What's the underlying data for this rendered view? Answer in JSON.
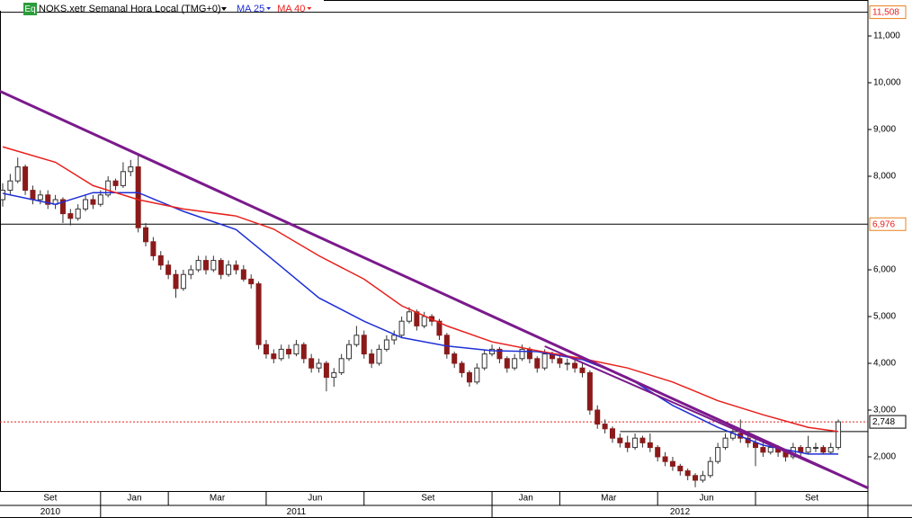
{
  "chart_data": {
    "type": "candlestick",
    "title": "NOKS.xetr Semanal Hora Local (TMG+0)",
    "badge": "Eq",
    "ylim": [
      1269,
      11769
    ],
    "yticks": [
      {
        "value": 2000,
        "label": "2,000"
      },
      {
        "value": 3000,
        "label": "3,000"
      },
      {
        "value": 4000,
        "label": "4,000"
      },
      {
        "value": 5000,
        "label": "5,000"
      },
      {
        "value": 6000,
        "label": "6,000"
      },
      {
        "value": 8000,
        "label": "8,000"
      },
      {
        "value": 9000,
        "label": "9,000"
      },
      {
        "value": 10000,
        "label": "10,000"
      },
      {
        "value": 11000,
        "label": "11,000"
      }
    ],
    "up_color": "#ffffff",
    "down_color": "#8b1a1a",
    "ohlc": [
      [
        7500,
        7850,
        7350,
        7700
      ],
      [
        7700,
        8050,
        7600,
        7900
      ],
      [
        7900,
        8400,
        7850,
        8200
      ],
      [
        8200,
        8250,
        7600,
        7700
      ],
      [
        7700,
        7800,
        7400,
        7500
      ],
      [
        7500,
        7700,
        7400,
        7600
      ],
      [
        7600,
        7700,
        7300,
        7400
      ],
      [
        7400,
        7600,
        7300,
        7500
      ],
      [
        7500,
        7550,
        7000,
        7200
      ],
      [
        7200,
        7300,
        6950,
        7100
      ],
      [
        7100,
        7400,
        7050,
        7300
      ],
      [
        7300,
        7600,
        7250,
        7500
      ],
      [
        7500,
        7600,
        7300,
        7400
      ],
      [
        7400,
        7700,
        7350,
        7600
      ],
      [
        7600,
        8000,
        7550,
        7900
      ],
      [
        7900,
        7950,
        7700,
        7800
      ],
      [
        7800,
        8300,
        7750,
        8100
      ],
      [
        8100,
        8350,
        8000,
        8200
      ],
      [
        8200,
        8450,
        6800,
        6900
      ],
      [
        6900,
        7000,
        6500,
        6600
      ],
      [
        6600,
        6700,
        6200,
        6300
      ],
      [
        6300,
        6400,
        6000,
        6100
      ],
      [
        6100,
        6200,
        5800,
        5900
      ],
      [
        5900,
        6000,
        5400,
        5600
      ],
      [
        5600,
        6000,
        5550,
        5900
      ],
      [
        5900,
        6100,
        5800,
        6000
      ],
      [
        6000,
        6300,
        5950,
        6200
      ],
      [
        6200,
        6300,
        5900,
        6000
      ],
      [
        6000,
        6300,
        5950,
        6200
      ],
      [
        6200,
        6250,
        5800,
        5900
      ],
      [
        5900,
        6200,
        5850,
        6100
      ],
      [
        6100,
        6200,
        5900,
        6000
      ],
      [
        6000,
        6100,
        5750,
        5800
      ],
      [
        5800,
        5900,
        5600,
        5700
      ],
      [
        5700,
        5750,
        4300,
        4400
      ],
      [
        4400,
        4500,
        4100,
        4200
      ],
      [
        4200,
        4300,
        4000,
        4100
      ],
      [
        4100,
        4400,
        4050,
        4300
      ],
      [
        4300,
        4400,
        4100,
        4200
      ],
      [
        4200,
        4500,
        4150,
        4400
      ],
      [
        4400,
        4450,
        4000,
        4100
      ],
      [
        4100,
        4200,
        3800,
        3900
      ],
      [
        3900,
        4100,
        3800,
        4000
      ],
      [
        4000,
        4050,
        3400,
        3700
      ],
      [
        3700,
        3900,
        3500,
        3800
      ],
      [
        3800,
        4200,
        3750,
        4100
      ],
      [
        4100,
        4500,
        4050,
        4400
      ],
      [
        4400,
        4800,
        4350,
        4600
      ],
      [
        4600,
        4700,
        4100,
        4200
      ],
      [
        4200,
        4300,
        3900,
        4000
      ],
      [
        4000,
        4400,
        3950,
        4300
      ],
      [
        4300,
        4600,
        4250,
        4500
      ],
      [
        4500,
        4700,
        4400,
        4600
      ],
      [
        4600,
        5000,
        4550,
        4900
      ],
      [
        4900,
        5200,
        4850,
        5100
      ],
      [
        5100,
        5150,
        4700,
        4800
      ],
      [
        4800,
        5100,
        4750,
        5000
      ],
      [
        5000,
        5050,
        4800,
        4900
      ],
      [
        4900,
        4950,
        4500,
        4600
      ],
      [
        4600,
        4650,
        4100,
        4200
      ],
      [
        4200,
        4250,
        3900,
        4000
      ],
      [
        4000,
        4050,
        3700,
        3800
      ],
      [
        3800,
        3850,
        3500,
        3600
      ],
      [
        3600,
        4000,
        3550,
        3900
      ],
      [
        3900,
        4300,
        3850,
        4200
      ],
      [
        4200,
        4400,
        4150,
        4300
      ],
      [
        4300,
        4350,
        4000,
        4100
      ],
      [
        4100,
        4150,
        3800,
        3900
      ],
      [
        3900,
        4200,
        3850,
        4100
      ],
      [
        4100,
        4400,
        4050,
        4300
      ],
      [
        4300,
        4350,
        4000,
        4100
      ],
      [
        4100,
        4150,
        3800,
        3900
      ],
      [
        3900,
        4300,
        3850,
        4200
      ],
      [
        4200,
        4250,
        4000,
        4100
      ],
      [
        4100,
        4200,
        3900,
        4000
      ],
      [
        4000,
        4100,
        3850,
        4000
      ],
      [
        4000,
        4100,
        3800,
        3900
      ],
      [
        3900,
        4000,
        3700,
        3800
      ],
      [
        3800,
        3850,
        2900,
        3000
      ],
      [
        3000,
        3100,
        2600,
        2700
      ],
      [
        2700,
        2800,
        2500,
        2600
      ],
      [
        2600,
        2650,
        2300,
        2400
      ],
      [
        2400,
        2500,
        2200,
        2300
      ],
      [
        2300,
        2450,
        2100,
        2200
      ],
      [
        2200,
        2500,
        2150,
        2400
      ],
      [
        2400,
        2450,
        2200,
        2300
      ],
      [
        2300,
        2500,
        2100,
        2200
      ],
      [
        2200,
        2250,
        1900,
        2000
      ],
      [
        2000,
        2100,
        1800,
        1900
      ],
      [
        1900,
        2000,
        1700,
        1800
      ],
      [
        1800,
        1850,
        1600,
        1700
      ],
      [
        1700,
        1750,
        1500,
        1600
      ],
      [
        1600,
        1650,
        1350,
        1500
      ],
      [
        1500,
        1700,
        1450,
        1600
      ],
      [
        1600,
        2000,
        1550,
        1900
      ],
      [
        1900,
        2300,
        1850,
        2200
      ],
      [
        2200,
        2500,
        2150,
        2400
      ],
      [
        2400,
        2600,
        2350,
        2500
      ],
      [
        2500,
        2800,
        2300,
        2400
      ],
      [
        2400,
        2500,
        2200,
        2300
      ],
      [
        2300,
        2400,
        1800,
        2200
      ],
      [
        2200,
        2300,
        2000,
        2100
      ],
      [
        2100,
        2300,
        2050,
        2200
      ],
      [
        2200,
        2250,
        2000,
        2100
      ],
      [
        2100,
        2150,
        1900,
        2000
      ],
      [
        2000,
        2300,
        1950,
        2200
      ],
      [
        2200,
        2250,
        2000,
        2100
      ],
      [
        2100,
        2450,
        2050,
        2200
      ],
      [
        2200,
        2300,
        2100,
        2200
      ],
      [
        2200,
        2250,
        2050,
        2100
      ],
      [
        2100,
        2300,
        2050,
        2200
      ],
      [
        2200,
        2800,
        2150,
        2748
      ]
    ],
    "series": [
      {
        "name": "MA 25",
        "color": "#1f2fd6",
        "x": [
          0,
          7,
          12,
          18,
          24,
          31,
          36,
          42,
          48,
          53,
          59,
          65,
          71,
          77,
          83,
          89,
          95,
          101,
          107,
          111
        ],
        "values": [
          7635,
          7400,
          7650,
          7650,
          7250,
          6860,
          6200,
          5400,
          4900,
          4550,
          4370,
          4270,
          4250,
          4080,
          3700,
          3100,
          2630,
          2250,
          2060,
          2060
        ]
      },
      {
        "name": "MA 40",
        "color": "#e8201c",
        "x": [
          0,
          7,
          12,
          18,
          24,
          31,
          36,
          42,
          48,
          53,
          59,
          65,
          71,
          77,
          83,
          89,
          95,
          101,
          107,
          111
        ],
        "values": [
          8630,
          8300,
          7800,
          7500,
          7300,
          7150,
          6870,
          6300,
          5800,
          5230,
          4800,
          4460,
          4270,
          4100,
          3900,
          3600,
          3200,
          2900,
          2630,
          2540
        ]
      }
    ],
    "trendlines": [
      {
        "color": "#7b1a8c",
        "points": [
          [
            -0.4,
            9820
          ],
          [
            115,
            1330
          ]
        ]
      },
      {
        "color": "#7b1a8c",
        "points": [
          [
            72,
            4365
          ],
          [
            111,
            1615
          ]
        ]
      }
    ],
    "levels": [
      {
        "value": 11508,
        "label": "11,508",
        "color": "#000000",
        "label_color": "#e8201c",
        "dotted": false
      },
      {
        "value": 6976,
        "label": "6,976",
        "color": "#000000",
        "label_color": "#e8201c",
        "dotted": false
      },
      {
        "value": 2748,
        "label": "2,748",
        "color": "#e8201c",
        "label_color": "#000000",
        "dotted": true
      }
    ],
    "segments": [
      {
        "value": 2540,
        "from": 82,
        "color": "#000000"
      }
    ],
    "months": [
      {
        "label": "Set",
        "start": -0.4,
        "end": 13
      },
      {
        "label": "Jan",
        "start": 13,
        "end": 22
      },
      {
        "label": "Mar",
        "start": 22,
        "end": 35
      },
      {
        "label": "Jun",
        "start": 35,
        "end": 48
      },
      {
        "label": "Set",
        "start": 48,
        "end": 65
      },
      {
        "label": "Jan",
        "start": 65,
        "end": 74
      },
      {
        "label": "Mar",
        "start": 74,
        "end": 87
      },
      {
        "label": "Jun",
        "start": 87,
        "end": 100
      },
      {
        "label": "Set",
        "start": 100,
        "end": 115
      }
    ],
    "years": [
      {
        "label": "2010",
        "start": -0.4,
        "end": 13
      },
      {
        "label": "2011",
        "start": 13,
        "end": 65
      },
      {
        "label": "2012",
        "start": 65,
        "end": 115
      }
    ]
  }
}
